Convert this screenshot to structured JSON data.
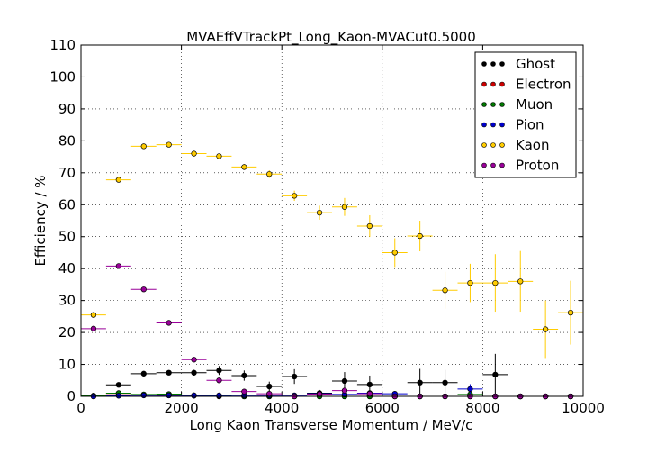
{
  "chart_data": {
    "type": "scatter",
    "title": "MVAEffVTrackPt_Long_Kaon-MVACut0.5000",
    "xlabel": "Long Kaon Transverse Momentum / MeV/c",
    "ylabel": "Efficiency / %",
    "xlim": [
      0,
      10000
    ],
    "ylim": [
      0,
      110
    ],
    "xticks": [
      "0",
      "2000",
      "4000",
      "6000",
      "8000",
      "10000"
    ],
    "yticks": [
      "0",
      "10",
      "20",
      "30",
      "40",
      "50",
      "60",
      "70",
      "80",
      "90",
      "100",
      "110"
    ],
    "grid": true,
    "legend_position": "top-right",
    "reference_line": 100,
    "bin_half_width": 250,
    "series": [
      {
        "name": "Ghost",
        "color": "#000000",
        "points": [
          [
            250,
            0,
            0
          ],
          [
            750,
            3.6,
            0.5
          ],
          [
            1250,
            7.1,
            0.5
          ],
          [
            1750,
            7.4,
            0.7
          ],
          [
            2250,
            7.4,
            0.9
          ],
          [
            2750,
            8.1,
            1.4
          ],
          [
            3250,
            6.5,
            1.6
          ],
          [
            3750,
            3.1,
            1.5
          ],
          [
            4250,
            6.2,
            2.3
          ],
          [
            4750,
            1.0,
            1.0
          ],
          [
            5250,
            4.8,
            2.8
          ],
          [
            5750,
            3.7,
            2.8
          ],
          [
            6250,
            0,
            0
          ],
          [
            6750,
            4.3,
            4.3
          ],
          [
            7250,
            4.3,
            4.0
          ],
          [
            7750,
            0,
            0
          ],
          [
            8250,
            6.8,
            6.5
          ],
          [
            8750,
            0,
            0
          ],
          [
            9250,
            0,
            0
          ],
          [
            9750,
            0,
            0
          ]
        ]
      },
      {
        "name": "Electron",
        "color": "#cc0000",
        "points": [
          [
            250,
            0.2,
            0.1
          ],
          [
            750,
            0.9,
            0.3
          ],
          [
            1250,
            0.4,
            0.2
          ],
          [
            1750,
            0.3,
            0.2
          ],
          [
            2250,
            0.2,
            0.2
          ],
          [
            2750,
            0,
            0
          ],
          [
            3250,
            0,
            0
          ],
          [
            3750,
            0,
            0
          ],
          [
            4250,
            0,
            0
          ],
          [
            4750,
            0,
            0
          ],
          [
            5250,
            0,
            0
          ],
          [
            5750,
            0,
            0
          ],
          [
            6250,
            0,
            0
          ],
          [
            6750,
            0,
            0
          ],
          [
            7250,
            0,
            0
          ],
          [
            7750,
            0,
            0
          ],
          [
            8250,
            0,
            0
          ],
          [
            8750,
            0,
            0
          ],
          [
            9250,
            0,
            0
          ],
          [
            9750,
            0,
            0
          ]
        ]
      },
      {
        "name": "Muon",
        "color": "#007700",
        "points": [
          [
            250,
            0.2,
            0.1
          ],
          [
            750,
            1.0,
            0.3
          ],
          [
            1250,
            0.6,
            0.2
          ],
          [
            1750,
            0.7,
            0.3
          ],
          [
            2250,
            0.3,
            0.2
          ],
          [
            2750,
            0.2,
            0.2
          ],
          [
            3250,
            0,
            0
          ],
          [
            3750,
            0,
            0
          ],
          [
            4250,
            0,
            0
          ],
          [
            4750,
            0,
            0
          ],
          [
            5250,
            0,
            0
          ],
          [
            5750,
            0,
            0
          ],
          [
            6250,
            0,
            0
          ],
          [
            6750,
            0,
            0
          ],
          [
            7250,
            0,
            0
          ],
          [
            7750,
            0.6,
            0.6
          ],
          [
            8250,
            0,
            0
          ],
          [
            8750,
            0,
            0
          ],
          [
            9250,
            0,
            0
          ],
          [
            9750,
            0,
            0
          ]
        ]
      },
      {
        "name": "Pion",
        "color": "#0000cc",
        "points": [
          [
            250,
            0,
            0
          ],
          [
            750,
            0.2,
            0.1
          ],
          [
            1250,
            0.3,
            0.1
          ],
          [
            1750,
            0.3,
            0.2
          ],
          [
            2250,
            0.3,
            0.2
          ],
          [
            2750,
            0.3,
            0.2
          ],
          [
            3250,
            0.3,
            0.2
          ],
          [
            3750,
            0.3,
            0.2
          ],
          [
            4250,
            0.3,
            0.3
          ],
          [
            4750,
            0.8,
            0.5
          ],
          [
            5250,
            0.6,
            0.5
          ],
          [
            5750,
            1.0,
            0.7
          ],
          [
            6250,
            0.8,
            0.6
          ],
          [
            6750,
            0,
            0
          ],
          [
            7250,
            0,
            0
          ],
          [
            7750,
            2.3,
            1.5
          ],
          [
            8250,
            0,
            0
          ],
          [
            8750,
            0,
            0
          ],
          [
            9250,
            0,
            0
          ],
          [
            9750,
            0,
            0
          ]
        ]
      },
      {
        "name": "Kaon",
        "color": "#ffcc00",
        "points": [
          [
            250,
            25.5,
            0.6
          ],
          [
            750,
            67.8,
            0.6
          ],
          [
            1250,
            78.3,
            0.5
          ],
          [
            1750,
            78.8,
            0.6
          ],
          [
            2250,
            76.0,
            0.6
          ],
          [
            2750,
            75.2,
            0.7
          ],
          [
            3250,
            71.8,
            0.9
          ],
          [
            3750,
            69.6,
            1.2
          ],
          [
            4250,
            62.8,
            1.6
          ],
          [
            4750,
            57.5,
            2.2
          ],
          [
            5250,
            59.3,
            2.8
          ],
          [
            5750,
            53.3,
            3.4
          ],
          [
            6250,
            45.0,
            4.5
          ],
          [
            6750,
            50.2,
            4.8
          ],
          [
            7250,
            33.2,
            5.8
          ],
          [
            7750,
            35.5,
            6.0
          ],
          [
            8250,
            35.5,
            9.0
          ],
          [
            8750,
            36.0,
            9.5
          ],
          [
            9250,
            21.0,
            9.0
          ],
          [
            9750,
            26.2,
            10.0
          ]
        ]
      },
      {
        "name": "Proton",
        "color": "#990099",
        "points": [
          [
            250,
            21.2,
            0.5
          ],
          [
            750,
            40.8,
            0.6
          ],
          [
            1250,
            33.5,
            0.6
          ],
          [
            1750,
            23.0,
            0.6
          ],
          [
            2250,
            11.5,
            0.6
          ],
          [
            2750,
            5.0,
            0.6
          ],
          [
            3250,
            1.5,
            0.5
          ],
          [
            3750,
            0.8,
            0.5
          ],
          [
            4250,
            0,
            0
          ],
          [
            4750,
            0.7,
            0.5
          ],
          [
            5250,
            1.8,
            0.8
          ],
          [
            5750,
            0.8,
            0.5
          ],
          [
            6250,
            0,
            0
          ],
          [
            6750,
            0,
            0
          ],
          [
            7250,
            0,
            0
          ],
          [
            7750,
            0,
            0
          ],
          [
            8250,
            0,
            0
          ],
          [
            8750,
            0,
            0
          ],
          [
            9250,
            0,
            0
          ],
          [
            9750,
            0,
            0
          ]
        ]
      }
    ]
  }
}
